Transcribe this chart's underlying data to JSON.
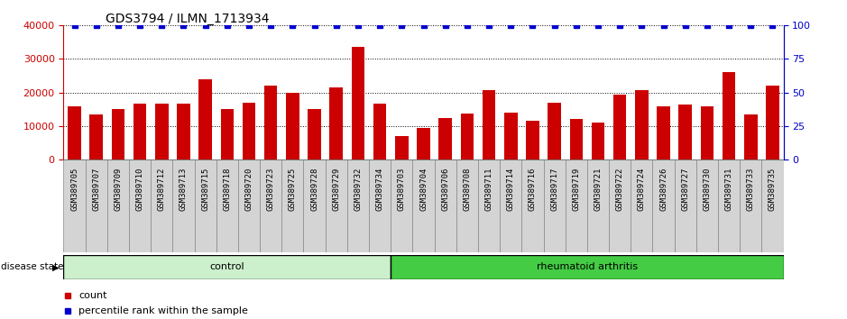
{
  "title": "GDS3794 / ILMN_1713934",
  "samples": [
    "GSM389705",
    "GSM389707",
    "GSM389709",
    "GSM389710",
    "GSM389712",
    "GSM389713",
    "GSM389715",
    "GSM389718",
    "GSM389720",
    "GSM389723",
    "GSM389725",
    "GSM389728",
    "GSM389729",
    "GSM389732",
    "GSM389734",
    "GSM389703",
    "GSM389704",
    "GSM389706",
    "GSM389708",
    "GSM389711",
    "GSM389714",
    "GSM389716",
    "GSM389717",
    "GSM389719",
    "GSM389721",
    "GSM389722",
    "GSM389724",
    "GSM389726",
    "GSM389727",
    "GSM389730",
    "GSM389731",
    "GSM389733",
    "GSM389735"
  ],
  "counts": [
    16000,
    13500,
    15000,
    16700,
    16700,
    16700,
    24000,
    15000,
    17000,
    22000,
    20000,
    15000,
    21500,
    33500,
    16700,
    7000,
    9500,
    12500,
    13700,
    20700,
    14000,
    11500,
    17000,
    12000,
    11000,
    19500,
    20700,
    16000,
    16500,
    16000,
    26000,
    13500,
    22000
  ],
  "percentile_ranks": [
    100,
    100,
    100,
    100,
    100,
    100,
    100,
    100,
    100,
    100,
    100,
    100,
    100,
    100,
    100,
    100,
    100,
    100,
    100,
    100,
    100,
    100,
    100,
    100,
    100,
    100,
    100,
    100,
    100,
    100,
    100,
    100,
    100
  ],
  "n_control": 15,
  "n_ra": 18,
  "bar_color": "#cc0000",
  "dot_color": "#0000cc",
  "control_color": "#ccf0cc",
  "ra_color": "#44cc44",
  "ylim_left": [
    0,
    40000
  ],
  "ylim_right": [
    0,
    100
  ],
  "yticks_left": [
    0,
    10000,
    20000,
    30000,
    40000
  ],
  "yticks_right": [
    0,
    25,
    50,
    75,
    100
  ],
  "ylabel_left_color": "#cc0000",
  "ylabel_right_color": "#0000cc",
  "label_count": "count",
  "label_percentile": "percentile rank within the sample",
  "disease_state_label": "disease state",
  "control_label": "control",
  "ra_label": "rheumatoid arthritis",
  "tick_bg_color": "#d4d4d4",
  "tick_box_edge_color": "#888888"
}
